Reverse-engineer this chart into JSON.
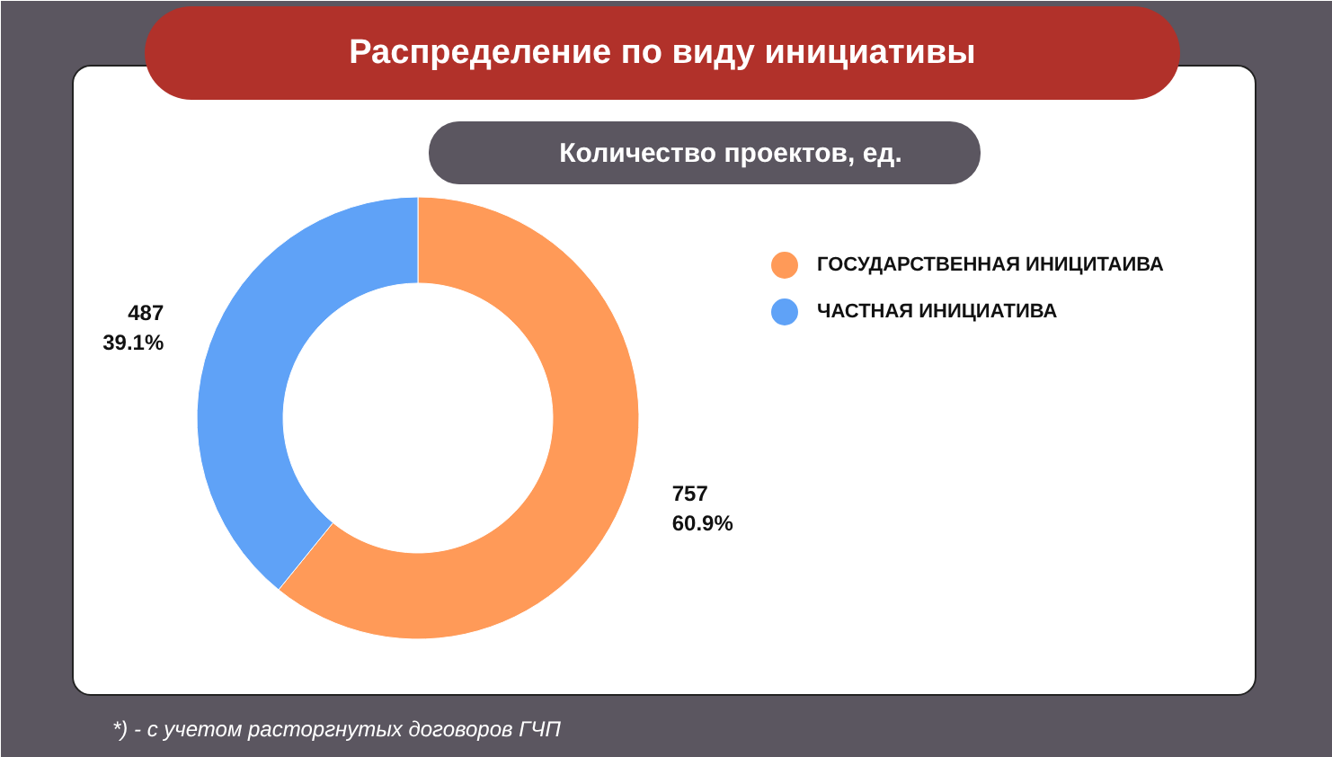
{
  "chart_data": {
    "type": "donut",
    "title": "Распределение по виду инициативы",
    "subtitle": "Количество проектов, ед.",
    "categories": [
      "ГОСУДАРСТВЕННАЯ ИНИЦИТАИВА",
      "ЧАСТНАЯ ИНИЦИАТИВА"
    ],
    "values": [
      757,
      487
    ],
    "colors": [
      "#ff9a58",
      "#5fa2f7"
    ],
    "value_labels": [
      "757\n60.9%",
      "487\n39.1%"
    ],
    "legend": "right",
    "annotations": [
      "*) - с учетом расторгнутых договоров ГЧП"
    ]
  }
}
